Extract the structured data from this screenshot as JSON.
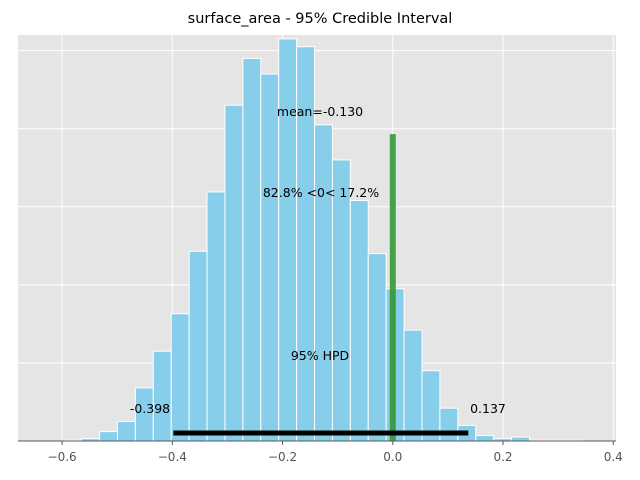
{
  "chart_data": {
    "type": "bar",
    "title": "surface_area - 95% Credible Interval",
    "xlim": [
      -0.68,
      0.405
    ],
    "ylim": [
      0,
      520
    ],
    "x_ticks": [
      -0.6,
      -0.4,
      -0.2,
      0.0,
      0.2,
      0.4
    ],
    "x_tick_labels": [
      "−0.6",
      "−0.4",
      "−0.2",
      "0.0",
      "0.2",
      "0.4"
    ],
    "grid": true,
    "bin_edges": [
      -0.597,
      -0.5645,
      -0.532,
      -0.4995,
      -0.467,
      -0.4345,
      -0.402,
      -0.3695,
      -0.337,
      -0.3045,
      -0.272,
      -0.2395,
      -0.207,
      -0.1745,
      -0.142,
      -0.1095,
      -0.077,
      -0.0445,
      -0.012,
      0.0205,
      0.053,
      0.0855,
      0.118,
      0.1505,
      0.183,
      0.2155,
      0.248,
      0.2805,
      0.313,
      0.3455
    ],
    "values": [
      1,
      3,
      12,
      25,
      68,
      115,
      163,
      243,
      319,
      430,
      490,
      470,
      515,
      505,
      405,
      360,
      308,
      240,
      195,
      142,
      90,
      42,
      20,
      7,
      3,
      5,
      1,
      1,
      1
    ],
    "reference_value": 0.0,
    "reference_line_top": 393,
    "hpd_interval": [
      -0.398,
      0.137
    ],
    "hpd_label": "95% HPD",
    "hpd_low_label": "-0.398",
    "hpd_high_label": "0.137",
    "mean_label": "mean=-0.130",
    "ref_label": "82.8% <0< 17.2%",
    "colors": {
      "background": "#E5E5E5",
      "bar": "#87CEEB",
      "bar_edge": "#ffffff",
      "reference": "#339933",
      "hpd": "#000000",
      "grid": "#ffffff"
    }
  }
}
